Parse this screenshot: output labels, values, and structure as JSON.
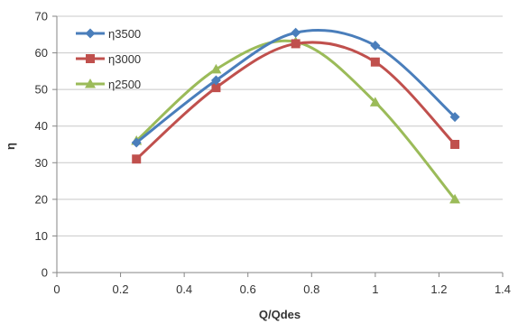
{
  "chart_data": {
    "type": "line",
    "title": "",
    "xlabel": "Q/Qdes",
    "ylabel": "η",
    "xlim": [
      0,
      1.4
    ],
    "ylim": [
      0,
      70
    ],
    "x_ticks": [
      "0",
      "0.2",
      "0.4",
      "0.6",
      "0.8",
      "1",
      "1.2",
      "1.4"
    ],
    "y_ticks": [
      "0",
      "10",
      "20",
      "30",
      "40",
      "50",
      "60",
      "70"
    ],
    "grid": "horizontal",
    "legend_position": "top-left",
    "x": [
      0.25,
      0.5,
      0.75,
      1.0,
      1.25
    ],
    "series": [
      {
        "name": "η3500",
        "values": [
          35.5,
          52.5,
          65.5,
          62.0,
          42.5
        ],
        "color": "#4a7ebb",
        "marker": "diamond"
      },
      {
        "name": "η3000",
        "values": [
          31.0,
          50.5,
          62.5,
          57.5,
          35.0
        ],
        "color": "#c0504d",
        "marker": "square"
      },
      {
        "name": "η2500",
        "values": [
          36.0,
          55.5,
          63.0,
          46.5,
          20.0
        ],
        "color": "#9bbb59",
        "marker": "triangle"
      }
    ]
  }
}
